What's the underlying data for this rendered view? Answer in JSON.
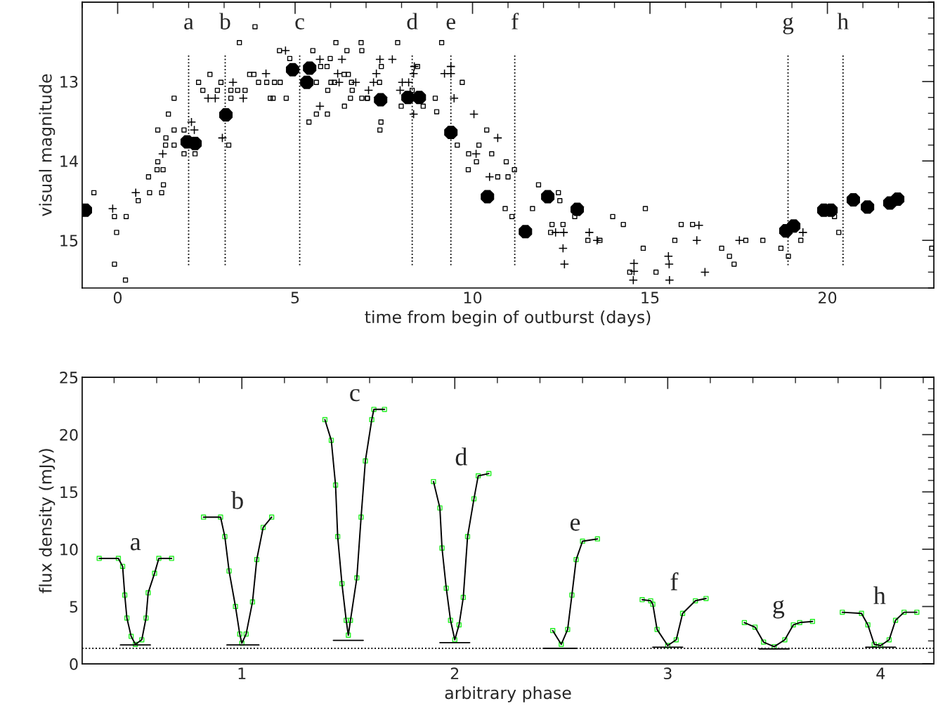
{
  "chart_data": [
    {
      "type": "scatter",
      "xlabel": "time from begin of outburst (days)",
      "ylabel": "visual magnitude",
      "xlim": [
        -1,
        23
      ],
      "ylim": [
        15.6,
        12
      ],
      "xticks": [
        0,
        5,
        10,
        15,
        20
      ],
      "yticks": [
        13,
        14,
        15
      ],
      "grid": false,
      "series": [
        {
          "marker": "square",
          "color": "#000000",
          "x": [
            -0.67,
            -0.09,
            0.24,
            -0.03,
            -0.09,
            0.22,
            0.58,
            0.9,
            0.87,
            1.24,
            1.29,
            1.11,
            1.28,
            1.13,
            1.35,
            1.59,
            1.36,
            1.13,
            1.59,
            1.87,
            1.43,
            1.59,
            1.87,
            2.18,
            2.28,
            2.4,
            2.6,
            2.81,
            2.91,
            3.19,
            3.38,
            3.59,
            3.19,
            3.13,
            3.43,
            3.87,
            3.72,
            3.84,
            3.97,
            4.2,
            4.42,
            4.58,
            4.3,
            4.38,
            4.75,
            4.85,
            4.56,
            5.5,
            5.6,
            5.72,
            5.9,
            5.99,
            5.92,
            5.6,
            5.91,
            5.39,
            6.15,
            6.46,
            6.86,
            6.88,
            6.39,
            6.38,
            6.5,
            6.01,
            6.11,
            6.59,
            6.61,
            6.56,
            6.88,
            7.03,
            7.89,
            9.13,
            7.43,
            7.38,
            7.04,
            7.42,
            7.39,
            7.99,
            8.3,
            8.61,
            8.45,
            8.95,
            8.99,
            9.71,
            10.4,
            9.57,
            9.89,
            10.18,
            10.54,
            10.11,
            9.88,
            10.95,
            10.71,
            11.0,
            11.18,
            10.92,
            11.11,
            11.69,
            11.86,
            12.42,
            12.46,
            12.88,
            12.24,
            12.55,
            12.2,
            13.25,
            13.59,
            13.95,
            14.25,
            14.87,
            14.81,
            14.43,
            15.17,
            15.88,
            16.2,
            15.7,
            17.02,
            17.24,
            17.37,
            17.7,
            18.18,
            18.69,
            18.9,
            19.25,
            20.2,
            20.32,
            22.94
          ],
          "values": [
            14.4,
            14.7,
            14.7,
            14.9,
            15.3,
            15.5,
            14.5,
            14.4,
            14.2,
            14.4,
            14.3,
            14.11,
            14.11,
            14.01,
            13.8,
            13.8,
            13.71,
            13.61,
            13.61,
            13.61,
            13.41,
            13.21,
            13.91,
            13.91,
            13.01,
            13.11,
            12.91,
            13.11,
            13.01,
            13.11,
            13.11,
            13.11,
            13.21,
            13.8,
            12.51,
            12.31,
            12.91,
            12.91,
            13.01,
            13.01,
            13.01,
            13.01,
            13.21,
            13.21,
            13.21,
            12.71,
            12.61,
            12.61,
            13.01,
            12.81,
            12.81,
            12.71,
            13.11,
            13.41,
            13.41,
            13.51,
            12.51,
            12.61,
            12.51,
            12.61,
            13.31,
            12.91,
            12.91,
            13.01,
            13.01,
            13.01,
            13.11,
            13.21,
            13.21,
            13.21,
            12.51,
            12.51,
            12.81,
            13.01,
            13.21,
            13.51,
            13.61,
            13.31,
            13.11,
            13.31,
            12.81,
            13.21,
            13.38,
            13.01,
            13.61,
            13.8,
            13.91,
            13.8,
            13.91,
            14.01,
            14.11,
            14.01,
            14.2,
            14.2,
            14.11,
            14.6,
            14.7,
            14.6,
            14.3,
            14.4,
            14.5,
            14.7,
            14.8,
            14.8,
            14.9,
            15.0,
            15.0,
            14.7,
            14.8,
            14.6,
            15.1,
            15.4,
            15.4,
            14.8,
            14.8,
            15.0,
            15.1,
            15.2,
            15.3,
            15.0,
            15.0,
            15.1,
            15.2,
            15.0,
            14.7,
            14.9,
            15.1
          ]
        },
        {
          "marker": "cross",
          "color": "#000000",
          "x": [
            -0.14,
            0.51,
            1.27,
            2.08,
            2.16,
            2.95,
            3.25,
            3.54,
            2.55,
            2.75,
            4.18,
            4.73,
            5.7,
            6.32,
            6.2,
            6.24,
            6.71,
            7.07,
            5.7,
            7.39,
            7.74,
            7.29,
            7.21,
            8.02,
            8.2,
            7.96,
            8.36,
            8.34,
            8.34,
            9.39,
            9.21,
            9.39,
            9.48,
            10.04,
            10.71,
            10.1,
            10.48,
            12.34,
            12.57,
            12.55,
            12.59,
            13.29,
            13.51,
            14.55,
            14.55,
            14.53,
            16.38,
            16.32,
            15.52,
            15.54,
            15.55,
            16.55,
            17.52,
            19.31
          ],
          "values": [
            14.6,
            14.4,
            13.91,
            13.51,
            13.61,
            13.71,
            13.01,
            13.21,
            13.21,
            13.21,
            12.9,
            12.61,
            12.72,
            12.72,
            12.9,
            13.01,
            13.01,
            13.11,
            13.31,
            12.72,
            12.72,
            12.9,
            13.01,
            13.01,
            13.01,
            13.11,
            12.81,
            12.9,
            13.41,
            12.81,
            12.9,
            12.9,
            13.21,
            13.41,
            13.71,
            13.91,
            14.2,
            14.9,
            14.9,
            15.1,
            15.3,
            14.9,
            15.0,
            15.29,
            15.39,
            15.5,
            14.81,
            15.0,
            15.2,
            15.3,
            15.5,
            15.4,
            15.0,
            14.9
          ]
        },
        {
          "marker": "circle",
          "color": "#000000",
          "x": [
            -0.91,
            1.96,
            2.18,
            3.05,
            4.93,
            5.33,
            5.41,
            7.41,
            8.18,
            8.5,
            9.39,
            10.42,
            11.49,
            12.12,
            12.95,
            18.83,
            19.05,
            19.9,
            20.1,
            20.73,
            21.13,
            21.76,
            21.98
          ],
          "values": [
            14.62,
            13.76,
            13.78,
            13.42,
            12.85,
            13.01,
            12.83,
            13.23,
            13.2,
            13.2,
            13.64,
            14.45,
            14.89,
            14.45,
            14.61,
            14.88,
            14.82,
            14.62,
            14.62,
            14.49,
            14.58,
            14.53,
            14.48
          ]
        }
      ],
      "ref_lines": [
        {
          "axis": "x",
          "value": 2.0,
          "line_style": "dotted",
          "label": "a"
        },
        {
          "axis": "x",
          "value": 3.03,
          "line_style": "dotted",
          "label": "b"
        },
        {
          "axis": "x",
          "value": 5.13,
          "line_style": "dotted",
          "label": "c"
        },
        {
          "axis": "x",
          "value": 8.3,
          "line_style": "dotted",
          "label": "d"
        },
        {
          "axis": "x",
          "value": 9.39,
          "line_style": "dotted",
          "label": "e"
        },
        {
          "axis": "x",
          "value": 11.19,
          "line_style": "dotted",
          "label": "f"
        },
        {
          "axis": "x",
          "value": 18.89,
          "line_style": "dotted",
          "label": "g"
        },
        {
          "axis": "x",
          "value": 20.44,
          "line_style": "dotted",
          "label": "h"
        }
      ]
    },
    {
      "type": "scatter",
      "xlabel": "arbitrary phase",
      "ylabel": "flux density (mJy)",
      "xlim": [
        0.25,
        4.25
      ],
      "ylim": [
        0,
        25
      ],
      "xticks": [
        1,
        2,
        3,
        4
      ],
      "yticks": [
        0,
        5,
        10,
        15,
        20,
        25
      ],
      "grid": false,
      "series": [
        {
          "marker": "square",
          "color": "#22ee22",
          "x": [
            0.33,
            0.42,
            0.44,
            0.45,
            0.46,
            0.48,
            0.5,
            0.53,
            0.55,
            0.56,
            0.59,
            0.61,
            0.67,
            0.82,
            0.9,
            0.92,
            0.94,
            0.97,
            0.99,
            1.0,
            1.02,
            1.05,
            1.07,
            1.1,
            1.14,
            1.39,
            1.42,
            1.44,
            1.45,
            1.47,
            1.49,
            1.5,
            1.51,
            1.54,
            1.56,
            1.58,
            1.61,
            1.62,
            1.67,
            1.9,
            1.93,
            1.94,
            1.96,
            1.98,
            2.0,
            2.02,
            2.04,
            2.06,
            2.09,
            2.11,
            2.16,
            2.46,
            2.5,
            2.53,
            2.55,
            2.57,
            2.6,
            2.67,
            2.88,
            2.92,
            2.93,
            2.95,
            3.0,
            3.04,
            3.07,
            3.13,
            3.18,
            3.36,
            3.41,
            3.45,
            3.5,
            3.55,
            3.59,
            3.62,
            3.68,
            3.82,
            3.91,
            3.94,
            3.97,
            4.0,
            4.04,
            4.07,
            4.11,
            4.17
          ],
          "values": [
            9.2,
            9.2,
            8.5,
            6.0,
            4.0,
            2.4,
            1.7,
            2.1,
            4.0,
            6.2,
            7.9,
            9.2,
            9.2,
            12.8,
            12.8,
            11.1,
            8.1,
            5.0,
            2.6,
            1.8,
            2.6,
            5.4,
            9.1,
            11.9,
            12.8,
            21.3,
            19.5,
            15.6,
            11.1,
            7.0,
            3.8,
            2.5,
            3.8,
            7.5,
            12.8,
            17.7,
            21.3,
            22.2,
            22.2,
            15.9,
            13.6,
            10.1,
            6.6,
            3.8,
            2.1,
            3.4,
            5.8,
            11.1,
            14.4,
            16.4,
            16.6,
            2.9,
            1.7,
            3.0,
            6.0,
            9.1,
            10.7,
            10.9,
            5.6,
            5.5,
            5.2,
            3.0,
            1.6,
            2.1,
            4.4,
            5.5,
            5.7,
            3.6,
            3.2,
            1.9,
            1.5,
            2.1,
            3.4,
            3.6,
            3.7,
            4.5,
            4.4,
            3.4,
            1.7,
            1.6,
            2.1,
            3.8,
            4.5,
            4.5
          ]
        },
        {
          "type": "line",
          "color": "#000000",
          "line_style": "solid",
          "x": [
            0.33,
            0.42,
            0.44,
            0.45,
            0.46,
            0.48,
            0.5,
            0.53,
            0.55,
            0.56,
            0.59,
            0.61,
            0.67,
            0.75,
            0.82,
            0.9,
            0.92,
            0.94,
            0.97,
            0.99,
            1.0,
            1.02,
            1.05,
            1.07,
            1.1,
            1.14,
            1.25,
            1.39,
            1.42,
            1.44,
            1.45,
            1.47,
            1.49,
            1.5,
            1.51,
            1.54,
            1.56,
            1.58,
            1.61,
            1.62,
            1.67,
            1.8,
            1.9,
            1.93,
            1.94,
            1.96,
            1.98,
            2.0,
            2.02,
            2.04,
            2.06,
            2.09,
            2.11,
            2.16,
            2.3,
            2.46,
            2.5,
            2.53,
            2.55,
            2.57,
            2.6,
            2.67,
            2.8,
            2.88,
            2.92,
            2.93,
            2.95,
            3.0,
            3.04,
            3.07,
            3.13,
            3.18,
            3.27,
            3.36,
            3.41,
            3.45,
            3.5,
            3.55,
            3.59,
            3.62,
            3.68,
            3.75,
            3.82,
            3.91,
            3.94,
            3.97,
            4.0,
            4.04,
            4.07,
            4.11,
            4.17
          ],
          "values": [
            9.2,
            9.2,
            8.5,
            6.0,
            4.0,
            2.4,
            1.7,
            2.1,
            4.0,
            6.2,
            7.9,
            9.2,
            9.2,
            null,
            12.8,
            12.8,
            11.1,
            8.1,
            5.0,
            2.6,
            1.8,
            2.6,
            5.4,
            9.1,
            11.9,
            12.8,
            null,
            21.3,
            19.5,
            15.6,
            11.1,
            7.0,
            3.8,
            2.5,
            3.8,
            7.5,
            12.8,
            17.7,
            21.3,
            22.2,
            22.2,
            null,
            15.9,
            13.6,
            10.1,
            6.6,
            3.8,
            2.1,
            3.4,
            5.8,
            11.1,
            14.4,
            16.4,
            16.6,
            null,
            2.9,
            1.7,
            3.0,
            6.0,
            9.1,
            10.7,
            10.9,
            null,
            5.6,
            5.5,
            5.2,
            3.0,
            1.6,
            2.1,
            4.4,
            5.5,
            5.7,
            null,
            3.6,
            3.2,
            1.9,
            1.5,
            2.1,
            3.4,
            3.6,
            3.7,
            null,
            4.5,
            4.4,
            3.4,
            1.7,
            1.6,
            2.1,
            3.8,
            4.5,
            4.5
          ]
        },
        {
          "type": "line",
          "color": "#000000",
          "line_style": "solid",
          "x": [
            0.43,
            0.57,
            0.75,
            0.93,
            1.08,
            1.25,
            1.43,
            1.57,
            1.75,
            1.93,
            2.07,
            2.25,
            2.42,
            2.57,
            2.75,
            2.93,
            3.07,
            3.25,
            3.43,
            3.57,
            3.75,
            3.93,
            4.07
          ],
          "values": [
            1.65,
            1.65,
            null,
            1.65,
            1.65,
            null,
            2.05,
            2.05,
            null,
            1.85,
            1.85,
            null,
            1.35,
            1.35,
            null,
            1.45,
            1.45,
            null,
            1.3,
            1.3,
            null,
            1.45,
            1.45
          ]
        }
      ],
      "ref_lines": [
        {
          "axis": "y",
          "value": 1.35,
          "line_style": "dotted"
        }
      ],
      "annotations": [
        "a",
        "b",
        "c",
        "d",
        "e",
        "f",
        "g",
        "h"
      ]
    }
  ]
}
